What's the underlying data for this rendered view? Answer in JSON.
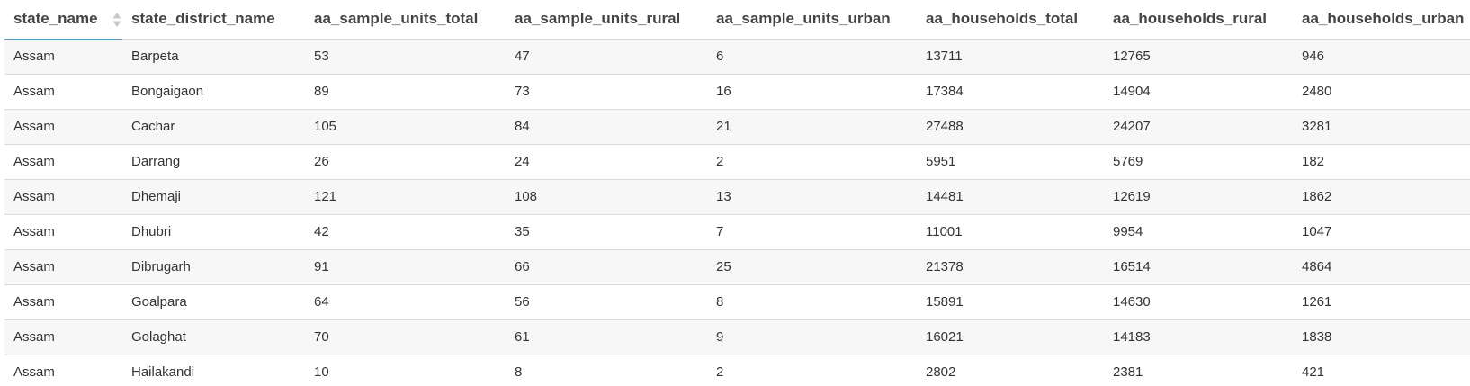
{
  "table": {
    "columns": [
      "state_name",
      "state_district_name",
      "aa_sample_units_total",
      "aa_sample_units_rural",
      "aa_sample_units_urban",
      "aa_households_total",
      "aa_households_rural",
      "aa_households_urban"
    ],
    "sorted_column": "state_name",
    "rows": [
      [
        "Assam",
        "Barpeta",
        "53",
        "47",
        "6",
        "13711",
        "12765",
        "946"
      ],
      [
        "Assam",
        "Bongaigaon",
        "89",
        "73",
        "16",
        "17384",
        "14904",
        "2480"
      ],
      [
        "Assam",
        "Cachar",
        "105",
        "84",
        "21",
        "27488",
        "24207",
        "3281"
      ],
      [
        "Assam",
        "Darrang",
        "26",
        "24",
        "2",
        "5951",
        "5769",
        "182"
      ],
      [
        "Assam",
        "Dhemaji",
        "121",
        "108",
        "13",
        "14481",
        "12619",
        "1862"
      ],
      [
        "Assam",
        "Dhubri",
        "42",
        "35",
        "7",
        "11001",
        "9954",
        "1047"
      ],
      [
        "Assam",
        "Dibrugarh",
        "91",
        "66",
        "25",
        "21378",
        "16514",
        "4864"
      ],
      [
        "Assam",
        "Goalpara",
        "64",
        "56",
        "8",
        "15891",
        "14630",
        "1261"
      ],
      [
        "Assam",
        "Golaghat",
        "70",
        "61",
        "9",
        "16021",
        "14183",
        "1838"
      ],
      [
        "Assam",
        "Hailakandi",
        "10",
        "8",
        "2",
        "2802",
        "2381",
        "421"
      ]
    ]
  },
  "colors": {
    "header_text": "#444444",
    "cell_text": "#333333",
    "row_stripe": "#f7f7f7",
    "border": "#dcdcdc",
    "sort_accent": "#5aa0c8",
    "sort_icon": "#c8c8c8"
  },
  "icons": {
    "sort": "sort-icon"
  }
}
